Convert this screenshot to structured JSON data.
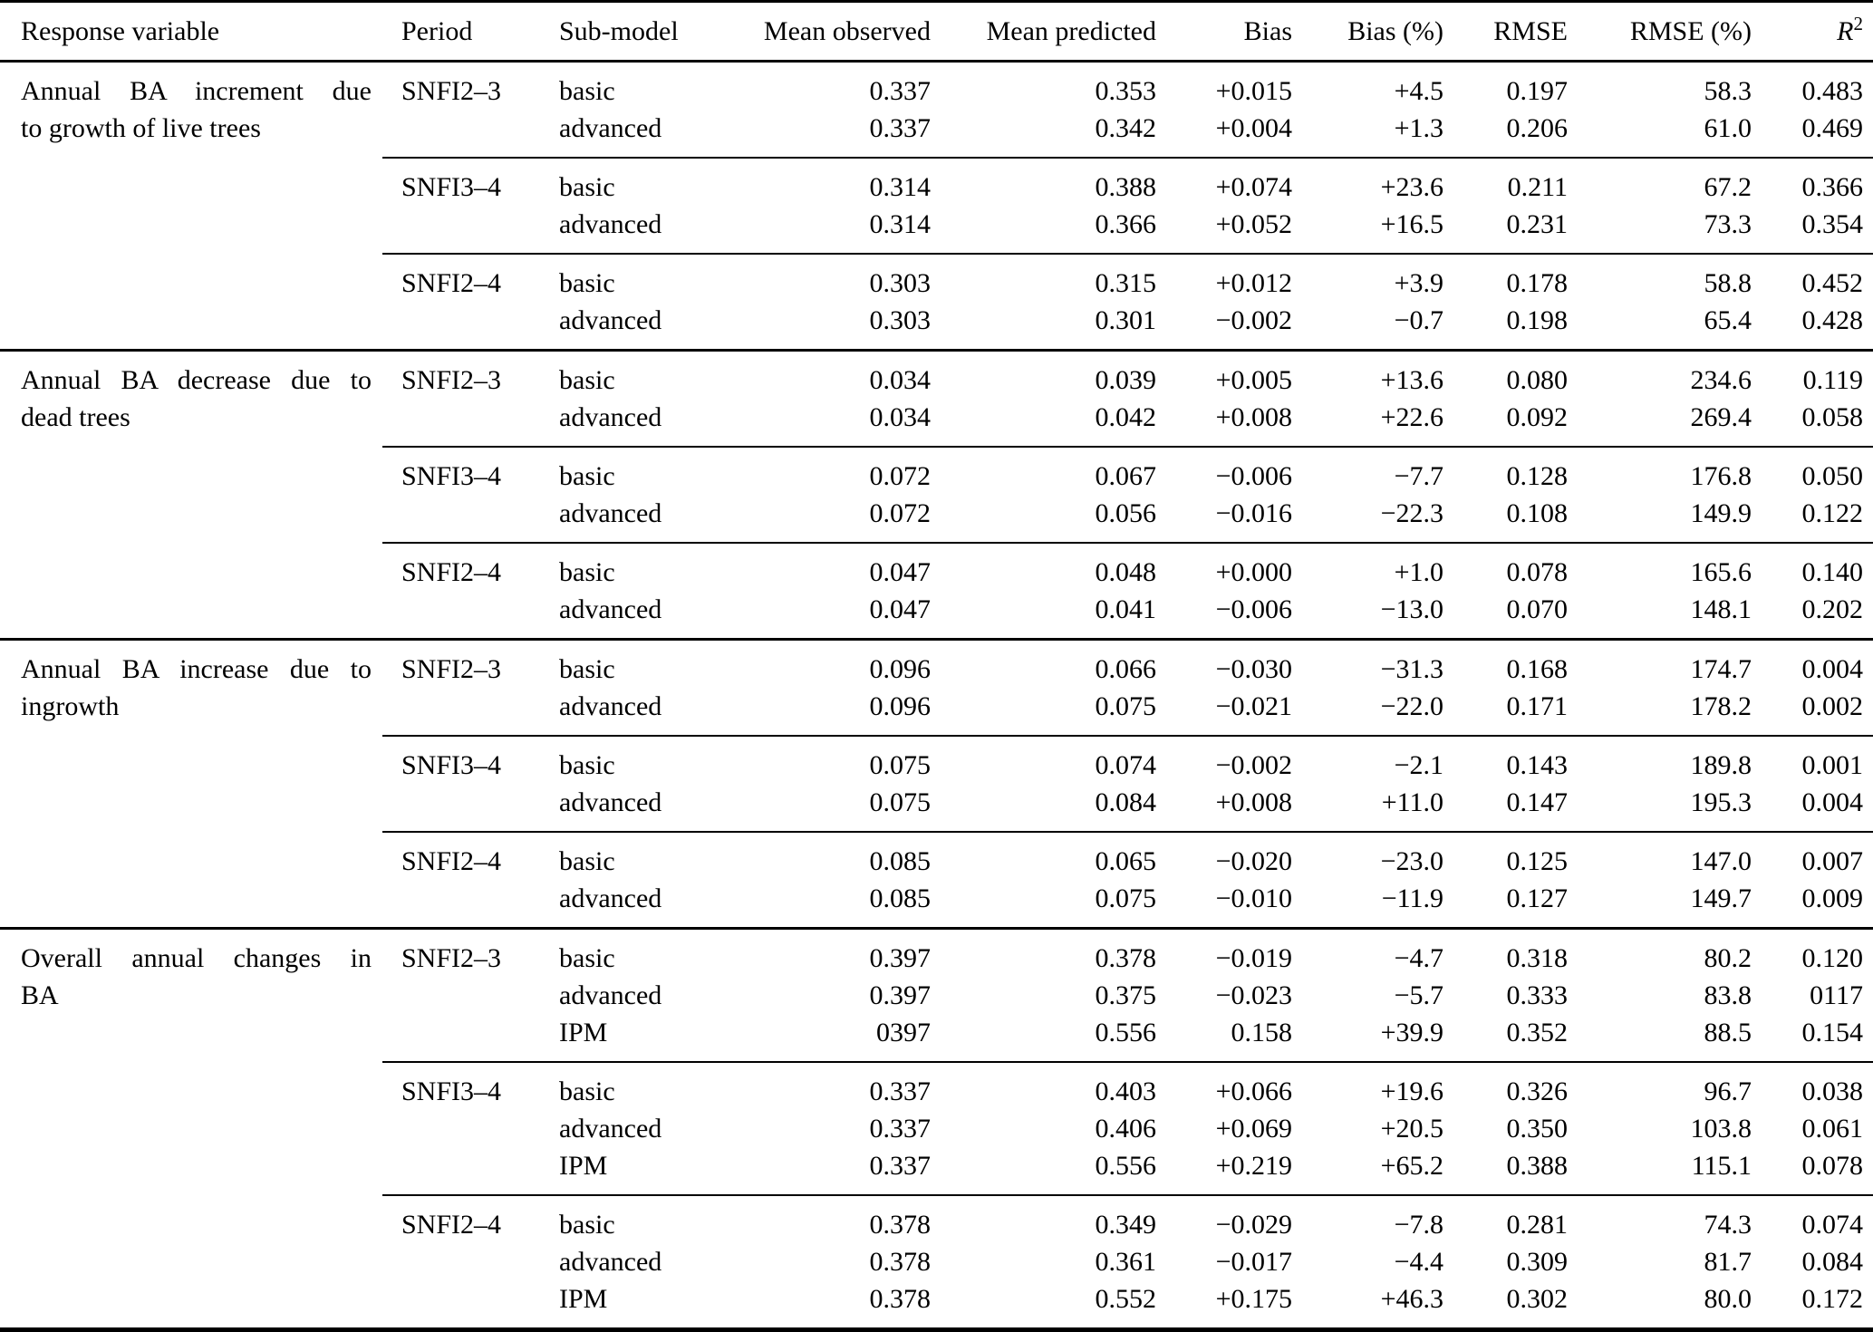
{
  "meta": {
    "text_color": "#000000",
    "background_color": "#ffffff",
    "rule_color": "#000000"
  },
  "table": {
    "headers": {
      "response": "Response variable",
      "period": "Period",
      "sub_model": "Sub-model",
      "mean_observed": "Mean observed",
      "mean_predicted": "Mean predicted",
      "bias": "Bias",
      "bias_pct": "Bias (%)",
      "rmse": "RMSE",
      "rmse_pct": "RMSE (%)",
      "r2_base": "R",
      "r2_sup": "2"
    },
    "sections": [
      {
        "response_lines": [
          "Annual BA increment due",
          "to growth of live trees"
        ],
        "groups": [
          {
            "period": "SNFI2–3",
            "rows": [
              {
                "sub_model": "basic",
                "mean_observed": "0.337",
                "mean_predicted": "0.353",
                "bias": "+0.015",
                "bias_pct": "+4.5",
                "rmse": "0.197",
                "rmse_pct": "58.3",
                "r2": "0.483"
              },
              {
                "sub_model": "advanced",
                "mean_observed": "0.337",
                "mean_predicted": "0.342",
                "bias": "+0.004",
                "bias_pct": "+1.3",
                "rmse": "0.206",
                "rmse_pct": "61.0",
                "r2": "0.469"
              }
            ]
          },
          {
            "period": "SNFI3–4",
            "rows": [
              {
                "sub_model": "basic",
                "mean_observed": "0.314",
                "mean_predicted": "0.388",
                "bias": "+0.074",
                "bias_pct": "+23.6",
                "rmse": "0.211",
                "rmse_pct": "67.2",
                "r2": "0.366"
              },
              {
                "sub_model": "advanced",
                "mean_observed": "0.314",
                "mean_predicted": "0.366",
                "bias": "+0.052",
                "bias_pct": "+16.5",
                "rmse": "0.231",
                "rmse_pct": "73.3",
                "r2": "0.354"
              }
            ]
          },
          {
            "period": "SNFI2–4",
            "rows": [
              {
                "sub_model": "basic",
                "mean_observed": "0.303",
                "mean_predicted": "0.315",
                "bias": "+0.012",
                "bias_pct": "+3.9",
                "rmse": "0.178",
                "rmse_pct": "58.8",
                "r2": "0.452"
              },
              {
                "sub_model": "advanced",
                "mean_observed": "0.303",
                "mean_predicted": "0.301",
                "bias": "−0.002",
                "bias_pct": "−0.7",
                "rmse": "0.198",
                "rmse_pct": "65.4",
                "r2": "0.428"
              }
            ]
          }
        ]
      },
      {
        "response_lines": [
          "Annual BA decrease due to",
          "dead trees"
        ],
        "groups": [
          {
            "period": "SNFI2–3",
            "rows": [
              {
                "sub_model": "basic",
                "mean_observed": "0.034",
                "mean_predicted": "0.039",
                "bias": "+0.005",
                "bias_pct": "+13.6",
                "rmse": "0.080",
                "rmse_pct": "234.6",
                "r2": "0.119"
              },
              {
                "sub_model": "advanced",
                "mean_observed": "0.034",
                "mean_predicted": "0.042",
                "bias": "+0.008",
                "bias_pct": "+22.6",
                "rmse": "0.092",
                "rmse_pct": "269.4",
                "r2": "0.058"
              }
            ]
          },
          {
            "period": "SNFI3–4",
            "rows": [
              {
                "sub_model": "basic",
                "mean_observed": "0.072",
                "mean_predicted": "0.067",
                "bias": "−0.006",
                "bias_pct": "−7.7",
                "rmse": "0.128",
                "rmse_pct": "176.8",
                "r2": "0.050"
              },
              {
                "sub_model": "advanced",
                "mean_observed": "0.072",
                "mean_predicted": "0.056",
                "bias": "−0.016",
                "bias_pct": "−22.3",
                "rmse": "0.108",
                "rmse_pct": "149.9",
                "r2": "0.122"
              }
            ]
          },
          {
            "period": "SNFI2–4",
            "rows": [
              {
                "sub_model": "basic",
                "mean_observed": "0.047",
                "mean_predicted": "0.048",
                "bias": "+0.000",
                "bias_pct": "+1.0",
                "rmse": "0.078",
                "rmse_pct": "165.6",
                "r2": "0.140"
              },
              {
                "sub_model": "advanced",
                "mean_observed": "0.047",
                "mean_predicted": "0.041",
                "bias": "−0.006",
                "bias_pct": "−13.0",
                "rmse": "0.070",
                "rmse_pct": "148.1",
                "r2": "0.202"
              }
            ]
          }
        ]
      },
      {
        "response_lines": [
          "Annual BA increase due to",
          "ingrowth"
        ],
        "groups": [
          {
            "period": "SNFI2–3",
            "rows": [
              {
                "sub_model": "basic",
                "mean_observed": "0.096",
                "mean_predicted": "0.066",
                "bias": "−0.030",
                "bias_pct": "−31.3",
                "rmse": "0.168",
                "rmse_pct": "174.7",
                "r2": "0.004"
              },
              {
                "sub_model": "advanced",
                "mean_observed": "0.096",
                "mean_predicted": "0.075",
                "bias": "−0.021",
                "bias_pct": "−22.0",
                "rmse": "0.171",
                "rmse_pct": "178.2",
                "r2": "0.002"
              }
            ]
          },
          {
            "period": "SNFI3–4",
            "rows": [
              {
                "sub_model": "basic",
                "mean_observed": "0.075",
                "mean_predicted": "0.074",
                "bias": "−0.002",
                "bias_pct": "−2.1",
                "rmse": "0.143",
                "rmse_pct": "189.8",
                "r2": "0.001"
              },
              {
                "sub_model": "advanced",
                "mean_observed": "0.075",
                "mean_predicted": "0.084",
                "bias": "+0.008",
                "bias_pct": "+11.0",
                "rmse": "0.147",
                "rmse_pct": "195.3",
                "r2": "0.004"
              }
            ]
          },
          {
            "period": "SNFI2–4",
            "rows": [
              {
                "sub_model": "basic",
                "mean_observed": "0.085",
                "mean_predicted": "0.065",
                "bias": "−0.020",
                "bias_pct": "−23.0",
                "rmse": "0.125",
                "rmse_pct": "147.0",
                "r2": "0.007"
              },
              {
                "sub_model": "advanced",
                "mean_observed": "0.085",
                "mean_predicted": "0.075",
                "bias": "−0.010",
                "bias_pct": "−11.9",
                "rmse": "0.127",
                "rmse_pct": "149.7",
                "r2": "0.009"
              }
            ]
          }
        ]
      },
      {
        "response_lines": [
          "Overall annual changes in",
          "BA"
        ],
        "groups": [
          {
            "period": "SNFI2–3",
            "rows": [
              {
                "sub_model": "basic",
                "mean_observed": "0.397",
                "mean_predicted": "0.378",
                "bias": "−0.019",
                "bias_pct": "−4.7",
                "rmse": "0.318",
                "rmse_pct": "80.2",
                "r2": "0.120"
              },
              {
                "sub_model": "advanced",
                "mean_observed": "0.397",
                "mean_predicted": "0.375",
                "bias": "−0.023",
                "bias_pct": "−5.7",
                "rmse": "0.333",
                "rmse_pct": "83.8",
                "r2": "0117"
              },
              {
                "sub_model": "IPM",
                "mean_observed": "0397",
                "mean_predicted": "0.556",
                "bias": "0.158",
                "bias_pct": "+39.9",
                "rmse": "0.352",
                "rmse_pct": "88.5",
                "r2": "0.154"
              }
            ]
          },
          {
            "period": "SNFI3–4",
            "rows": [
              {
                "sub_model": "basic",
                "mean_observed": "0.337",
                "mean_predicted": "0.403",
                "bias": "+0.066",
                "bias_pct": "+19.6",
                "rmse": "0.326",
                "rmse_pct": "96.7",
                "r2": "0.038"
              },
              {
                "sub_model": "advanced",
                "mean_observed": "0.337",
                "mean_predicted": "0.406",
                "bias": "+0.069",
                "bias_pct": "+20.5",
                "rmse": "0.350",
                "rmse_pct": "103.8",
                "r2": "0.061"
              },
              {
                "sub_model": "IPM",
                "mean_observed": "0.337",
                "mean_predicted": "0.556",
                "bias": "+0.219",
                "bias_pct": "+65.2",
                "rmse": "0.388",
                "rmse_pct": "115.1",
                "r2": "0.078"
              }
            ]
          },
          {
            "period": "SNFI2–4",
            "rows": [
              {
                "sub_model": "basic",
                "mean_observed": "0.378",
                "mean_predicted": "0.349",
                "bias": "−0.029",
                "bias_pct": "−7.8",
                "rmse": "0.281",
                "rmse_pct": "74.3",
                "r2": "0.074"
              },
              {
                "sub_model": "advanced",
                "mean_observed": "0.378",
                "mean_predicted": "0.361",
                "bias": "−0.017",
                "bias_pct": "−4.4",
                "rmse": "0.309",
                "rmse_pct": "81.7",
                "r2": "0.084"
              },
              {
                "sub_model": "IPM",
                "mean_observed": "0.378",
                "mean_predicted": "0.552",
                "bias": "+0.175",
                "bias_pct": "+46.3",
                "rmse": "0.302",
                "rmse_pct": "80.0",
                "r2": "0.172"
              }
            ]
          }
        ]
      }
    ]
  }
}
